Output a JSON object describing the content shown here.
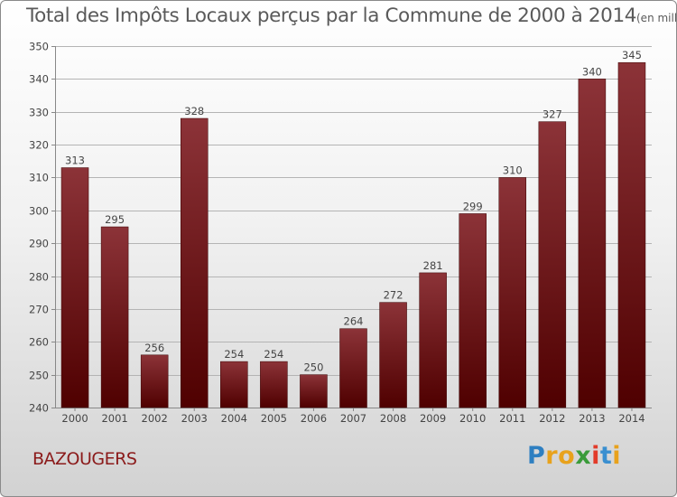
{
  "title": {
    "main": "Total des Impôts Locaux perçus par la Commune de 2000 à 2014",
    "unit": "(en milliers d'€)"
  },
  "commune": "BAZOUGERS",
  "logo": {
    "text": "Proxiti",
    "letter_colors": [
      "#2e7fc1",
      "#e8a21c",
      "#e8a21c",
      "#3a9b3a",
      "#e23b2a",
      "#3a8fd0",
      "#e8a21c"
    ]
  },
  "colors": {
    "bar_top": "#8c3338",
    "bar_bottom": "#4f0000",
    "grid": "#b4b4b4",
    "axis_text": "#444444",
    "title_text": "#5a5a5a",
    "commune_text": "#8b1a1a"
  },
  "chart_data": {
    "type": "bar",
    "title": "Total des Impôts Locaux perçus par la Commune de 2000 à 2014",
    "xlabel": "",
    "ylabel": "",
    "categories": [
      "2000",
      "2001",
      "2002",
      "2003",
      "2004",
      "2005",
      "2006",
      "2007",
      "2008",
      "2009",
      "2010",
      "2011",
      "2012",
      "2013",
      "2014"
    ],
    "values": [
      313,
      295,
      256,
      328,
      254,
      254,
      250,
      264,
      272,
      281,
      299,
      310,
      327,
      340,
      345
    ],
    "ylim": [
      240,
      350
    ],
    "yticks": [
      240,
      250,
      260,
      270,
      280,
      290,
      300,
      310,
      320,
      330,
      340,
      350
    ],
    "grid": true,
    "data_labels": true
  }
}
